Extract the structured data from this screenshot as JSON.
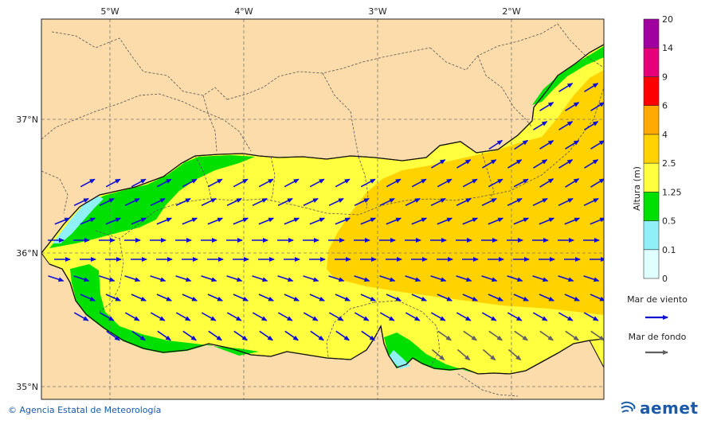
{
  "map": {
    "lon_labels": [
      "5°W",
      "4°W",
      "3°W",
      "2°W"
    ],
    "lat_labels": [
      "37°N",
      "36°N",
      "35°N"
    ]
  },
  "legend": {
    "title": "Altura (m)",
    "levels": [
      "0",
      "0.1",
      "0.5",
      "1.25",
      "2.5",
      "4",
      "6",
      "9",
      "14",
      "20"
    ],
    "colors": [
      "#e0ffff",
      "#90f0f8",
      "#00e000",
      "#ffff40",
      "#ffd200",
      "#ffaa00",
      "#ff0000",
      "#e6007a",
      "#a000a0"
    ],
    "wind_sea_label": "Mar de viento",
    "wind_sea_color": "#1010d0",
    "swell_label": "Mar de fondo",
    "swell_color": "#606060"
  },
  "footer": {
    "credit": "© Agencia Estatal de Meteorología",
    "logo_text": "aemet"
  },
  "colors": {
    "land": "#fcdcaa",
    "sea_yellow": "#ffff40",
    "sea_orange": "#ffd200",
    "sea_green": "#00e000",
    "sea_cyan": "#90f0f8"
  }
}
